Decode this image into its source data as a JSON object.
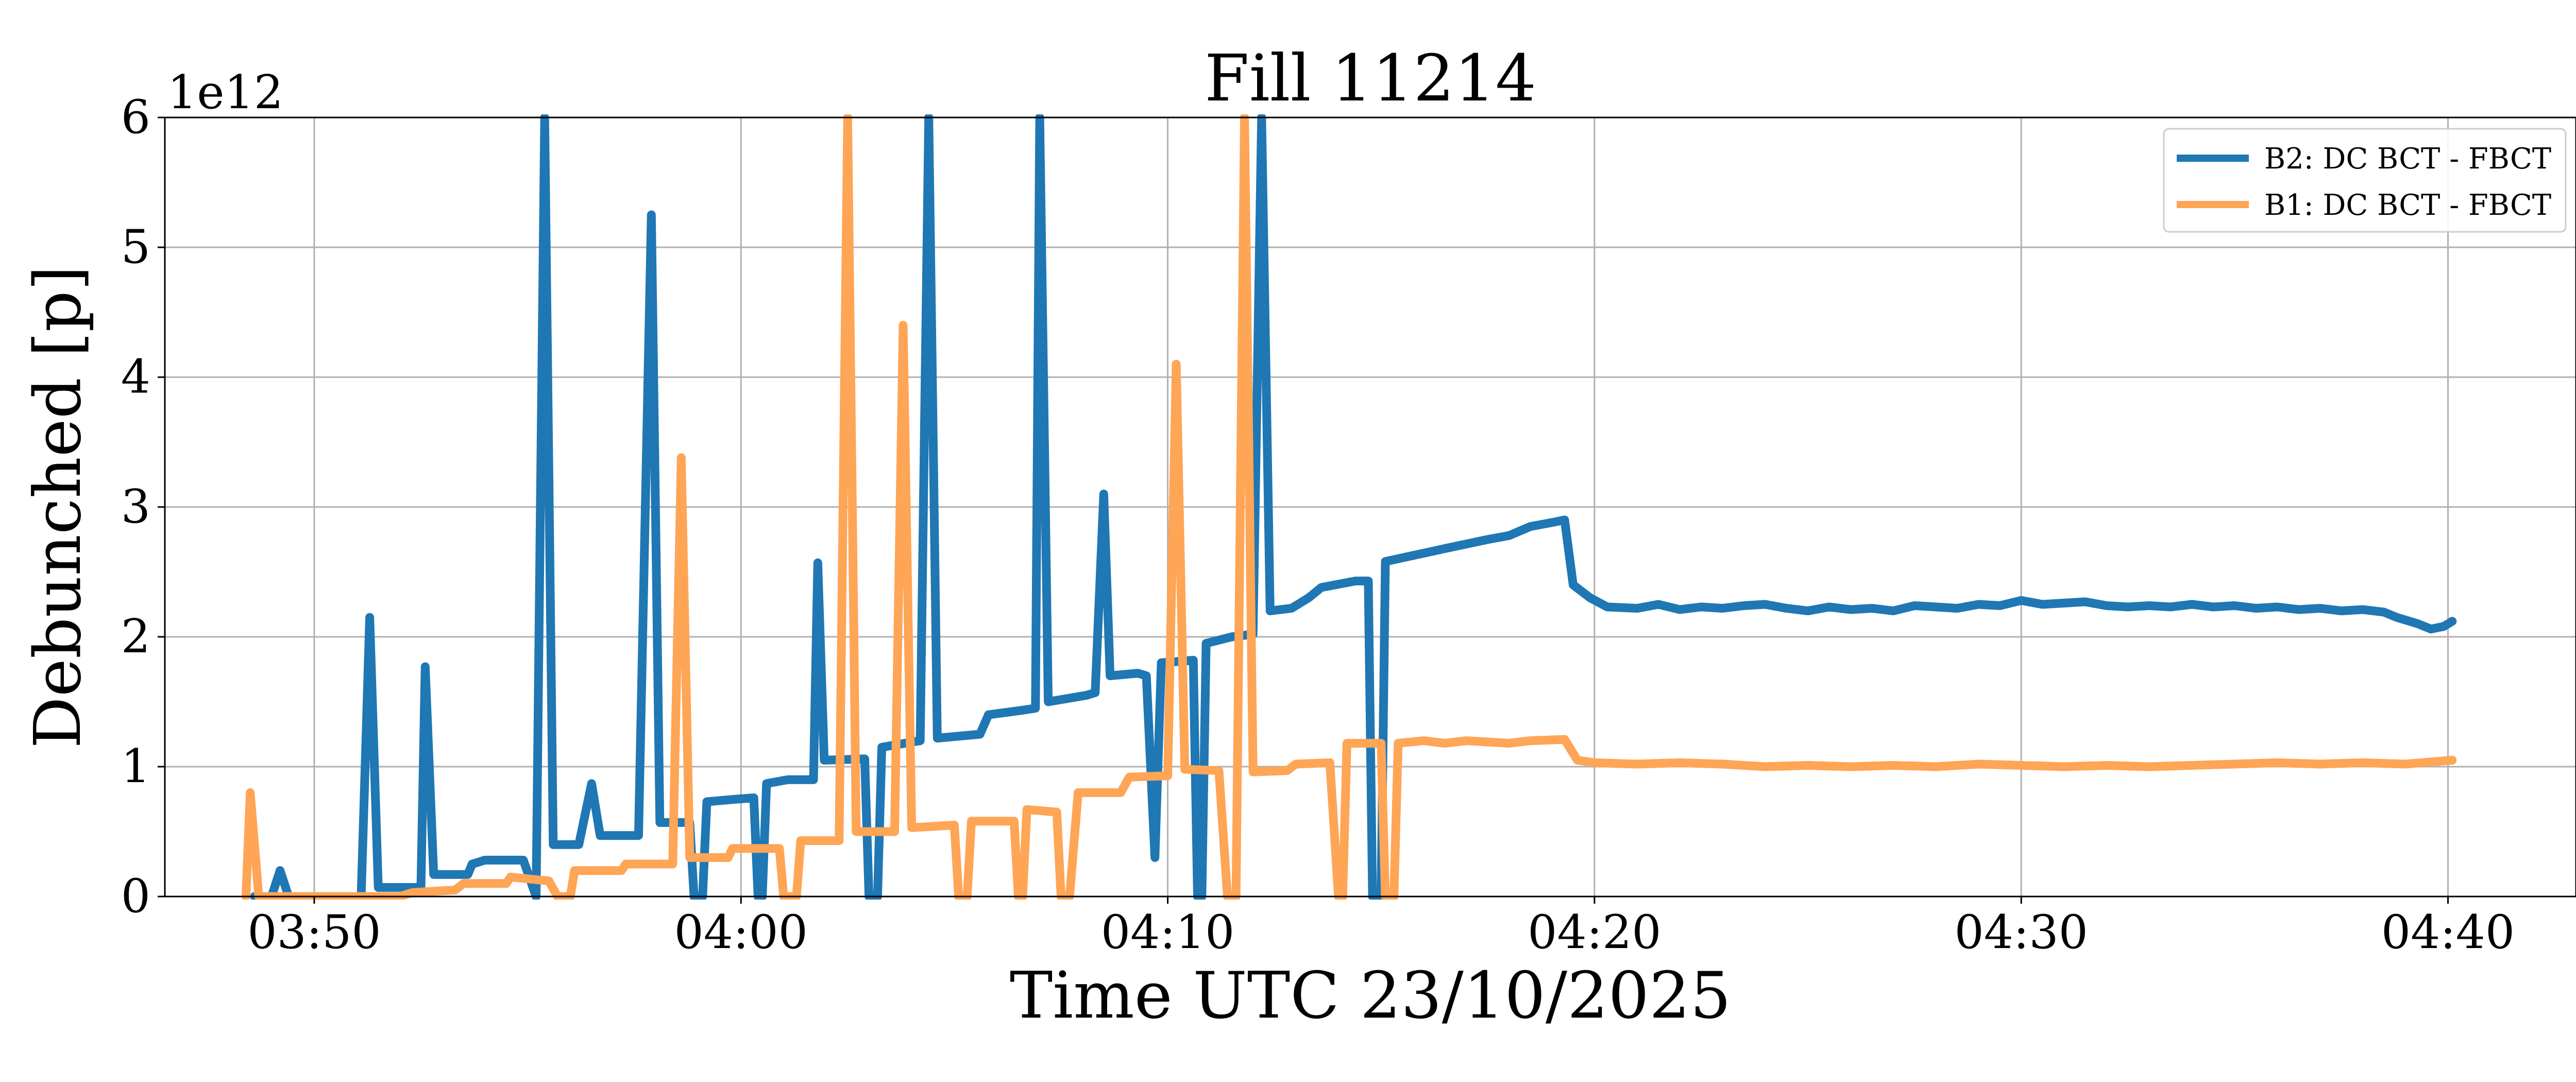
{
  "chart_data": {
    "type": "line",
    "title": "Fill 11214",
    "xlabel": "Time UTC 23/10/2025",
    "ylabel": "Debunched [p]",
    "y_offset_label": "1e12",
    "x_unit": "minutes after 03:40 UTC",
    "xlim": [
      6.5,
      63.0
    ],
    "ylim": [
      0,
      6
    ],
    "x_ticks": [
      {
        "value": 10,
        "label": "03:50"
      },
      {
        "value": 20,
        "label": "04:00"
      },
      {
        "value": 30,
        "label": "04:10"
      },
      {
        "value": 40,
        "label": "04:20"
      },
      {
        "value": 50,
        "label": "04:30"
      },
      {
        "value": 60,
        "label": "04:40"
      }
    ],
    "y_ticks": [
      {
        "value": 0,
        "label": "0"
      },
      {
        "value": 1,
        "label": "1"
      },
      {
        "value": 2,
        "label": "2"
      },
      {
        "value": 3,
        "label": "3"
      },
      {
        "value": 4,
        "label": "4"
      },
      {
        "value": 5,
        "label": "5"
      },
      {
        "value": 6,
        "label": "6"
      }
    ],
    "grid": true,
    "legend_position": "top-right",
    "series": [
      {
        "name": "B2: DC BCT - FBCT",
        "color": "#1f77b4",
        "points": [
          [
            8.6,
            0
          ],
          [
            9.0,
            0
          ],
          [
            9.2,
            0.2
          ],
          [
            9.4,
            0
          ],
          [
            11.1,
            0
          ],
          [
            11.3,
            2.15
          ],
          [
            11.5,
            0.07
          ],
          [
            12.5,
            0.07
          ],
          [
            12.6,
            1.77
          ],
          [
            12.8,
            0.17
          ],
          [
            13.6,
            0.17
          ],
          [
            13.7,
            0.25
          ],
          [
            14.0,
            0.28
          ],
          [
            14.9,
            0.28
          ],
          [
            15.2,
            0
          ],
          [
            15.4,
            6.0
          ],
          [
            15.6,
            0.4
          ],
          [
            16.2,
            0.4
          ],
          [
            16.5,
            0.87
          ],
          [
            16.7,
            0.47
          ],
          [
            17.6,
            0.47
          ],
          [
            17.9,
            5.25
          ],
          [
            18.1,
            0.57
          ],
          [
            18.8,
            0.57
          ],
          [
            18.9,
            0
          ],
          [
            19.1,
            0
          ],
          [
            19.2,
            0.73
          ],
          [
            19.9,
            0.75
          ],
          [
            20.3,
            0.76
          ],
          [
            20.4,
            0
          ],
          [
            20.5,
            0
          ],
          [
            20.6,
            0.87
          ],
          [
            21.1,
            0.9
          ],
          [
            21.7,
            0.9
          ],
          [
            21.8,
            2.57
          ],
          [
            21.95,
            1.05
          ],
          [
            22.9,
            1.06
          ],
          [
            23.0,
            0
          ],
          [
            23.2,
            0
          ],
          [
            23.3,
            1.15
          ],
          [
            24.2,
            1.2
          ],
          [
            24.4,
            6.0
          ],
          [
            24.6,
            1.22
          ],
          [
            25.6,
            1.25
          ],
          [
            25.8,
            1.4
          ],
          [
            26.5,
            1.43
          ],
          [
            26.9,
            1.45
          ],
          [
            27.0,
            6.0
          ],
          [
            27.2,
            1.5
          ],
          [
            28.1,
            1.55
          ],
          [
            28.3,
            1.57
          ],
          [
            28.5,
            3.1
          ],
          [
            28.65,
            1.7
          ],
          [
            29.3,
            1.72
          ],
          [
            29.5,
            1.7
          ],
          [
            29.7,
            0.3
          ],
          [
            29.85,
            1.8
          ],
          [
            30.6,
            1.82
          ],
          [
            30.7,
            0
          ],
          [
            30.8,
            0
          ],
          [
            30.9,
            1.95
          ],
          [
            31.5,
            2.0
          ],
          [
            32.0,
            2.02
          ],
          [
            32.2,
            6.0
          ],
          [
            32.4,
            2.2
          ],
          [
            32.9,
            2.22
          ],
          [
            33.3,
            2.3
          ],
          [
            33.6,
            2.38
          ],
          [
            34.4,
            2.43
          ],
          [
            34.7,
            2.43
          ],
          [
            34.8,
            0
          ],
          [
            35.0,
            0
          ],
          [
            35.1,
            2.58
          ],
          [
            35.8,
            2.63
          ],
          [
            36.5,
            2.68
          ],
          [
            37.5,
            2.75
          ],
          [
            38.0,
            2.78
          ],
          [
            38.5,
            2.85
          ],
          [
            39.0,
            2.88
          ],
          [
            39.3,
            2.9
          ],
          [
            39.5,
            2.4
          ],
          [
            39.9,
            2.3
          ],
          [
            40.3,
            2.23
          ],
          [
            41.0,
            2.22
          ],
          [
            41.5,
            2.25
          ],
          [
            42.0,
            2.21
          ],
          [
            42.5,
            2.23
          ],
          [
            43.0,
            2.22
          ],
          [
            43.5,
            2.24
          ],
          [
            44.0,
            2.25
          ],
          [
            44.5,
            2.22
          ],
          [
            45.0,
            2.2
          ],
          [
            45.5,
            2.23
          ],
          [
            46.0,
            2.21
          ],
          [
            46.5,
            2.22
          ],
          [
            47.0,
            2.2
          ],
          [
            47.5,
            2.24
          ],
          [
            48.0,
            2.23
          ],
          [
            48.5,
            2.22
          ],
          [
            49.0,
            2.25
          ],
          [
            49.5,
            2.24
          ],
          [
            50.0,
            2.28
          ],
          [
            50.5,
            2.25
          ],
          [
            51.0,
            2.26
          ],
          [
            51.5,
            2.27
          ],
          [
            52.0,
            2.24
          ],
          [
            52.5,
            2.23
          ],
          [
            53.0,
            2.24
          ],
          [
            53.5,
            2.23
          ],
          [
            54.0,
            2.25
          ],
          [
            54.5,
            2.23
          ],
          [
            55.0,
            2.24
          ],
          [
            55.5,
            2.22
          ],
          [
            56.0,
            2.23
          ],
          [
            56.5,
            2.21
          ],
          [
            57.0,
            2.22
          ],
          [
            57.5,
            2.2
          ],
          [
            58.0,
            2.21
          ],
          [
            58.5,
            2.19
          ],
          [
            58.8,
            2.15
          ],
          [
            59.3,
            2.1
          ],
          [
            59.6,
            2.06
          ],
          [
            59.9,
            2.08
          ],
          [
            60.1,
            2.12
          ]
        ]
      },
      {
        "name": "B1: DC BCT - FBCT",
        "color": "#ffa556",
        "points": [
          [
            8.4,
            0
          ],
          [
            8.5,
            0.8
          ],
          [
            8.7,
            0
          ],
          [
            12.0,
            0
          ],
          [
            12.3,
            0.03
          ],
          [
            13.3,
            0.05
          ],
          [
            13.5,
            0.1
          ],
          [
            14.5,
            0.1
          ],
          [
            14.6,
            0.15
          ],
          [
            15.5,
            0.12
          ],
          [
            15.7,
            0
          ],
          [
            16.0,
            0
          ],
          [
            16.1,
            0.2
          ],
          [
            17.2,
            0.2
          ],
          [
            17.3,
            0.25
          ],
          [
            18.4,
            0.25
          ],
          [
            18.6,
            3.38
          ],
          [
            18.8,
            0.3
          ],
          [
            19.7,
            0.3
          ],
          [
            19.8,
            0.37
          ],
          [
            20.9,
            0.37
          ],
          [
            21.0,
            0
          ],
          [
            21.3,
            0
          ],
          [
            21.4,
            0.43
          ],
          [
            22.3,
            0.43
          ],
          [
            22.5,
            6.0
          ],
          [
            22.7,
            0.5
          ],
          [
            23.6,
            0.5
          ],
          [
            23.8,
            4.4
          ],
          [
            24.0,
            0.53
          ],
          [
            25.0,
            0.55
          ],
          [
            25.1,
            0
          ],
          [
            25.3,
            0
          ],
          [
            25.4,
            0.58
          ],
          [
            26.4,
            0.58
          ],
          [
            26.5,
            0
          ],
          [
            26.6,
            0
          ],
          [
            26.7,
            0.67
          ],
          [
            27.4,
            0.65
          ],
          [
            27.5,
            0
          ],
          [
            27.7,
            0
          ],
          [
            27.9,
            0.8
          ],
          [
            28.9,
            0.8
          ],
          [
            29.1,
            0.92
          ],
          [
            30.0,
            0.93
          ],
          [
            30.2,
            4.1
          ],
          [
            30.4,
            0.98
          ],
          [
            31.2,
            0.97
          ],
          [
            31.4,
            0
          ],
          [
            31.6,
            0
          ],
          [
            31.8,
            6.0
          ],
          [
            32.0,
            0.96
          ],
          [
            32.8,
            0.97
          ],
          [
            33.0,
            1.02
          ],
          [
            33.8,
            1.03
          ],
          [
            34.0,
            0
          ],
          [
            34.1,
            0
          ],
          [
            34.2,
            1.18
          ],
          [
            35.0,
            1.18
          ],
          [
            35.1,
            0
          ],
          [
            35.3,
            0
          ],
          [
            35.4,
            1.18
          ],
          [
            36.0,
            1.2
          ],
          [
            36.5,
            1.18
          ],
          [
            37.0,
            1.2
          ],
          [
            38.0,
            1.18
          ],
          [
            38.5,
            1.2
          ],
          [
            39.3,
            1.21
          ],
          [
            39.6,
            1.05
          ],
          [
            40.0,
            1.03
          ],
          [
            41.0,
            1.02
          ],
          [
            42.0,
            1.03
          ],
          [
            43.0,
            1.02
          ],
          [
            44.0,
            1.0
          ],
          [
            45.0,
            1.01
          ],
          [
            46.0,
            1.0
          ],
          [
            47.0,
            1.01
          ],
          [
            48.0,
            1.0
          ],
          [
            49.0,
            1.02
          ],
          [
            50.0,
            1.01
          ],
          [
            51.0,
            1.0
          ],
          [
            52.0,
            1.01
          ],
          [
            53.0,
            1.0
          ],
          [
            54.0,
            1.01
          ],
          [
            55.0,
            1.02
          ],
          [
            56.0,
            1.03
          ],
          [
            57.0,
            1.02
          ],
          [
            58.0,
            1.03
          ],
          [
            59.0,
            1.02
          ],
          [
            60.1,
            1.05
          ]
        ]
      }
    ]
  }
}
